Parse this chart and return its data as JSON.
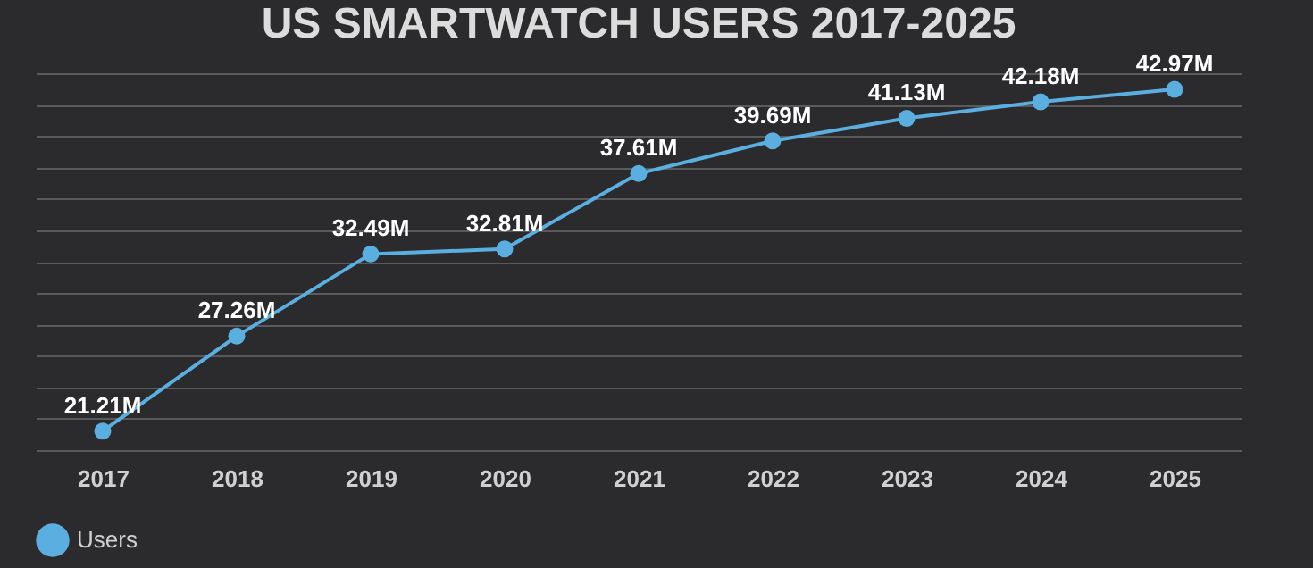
{
  "chart_data": {
    "type": "line",
    "title": "US SMARTWATCH USERS 2017-2025",
    "categories": [
      "2017",
      "2018",
      "2019",
      "2020",
      "2021",
      "2022",
      "2023",
      "2024",
      "2025"
    ],
    "series": [
      {
        "name": "Users",
        "color": "#5aafe0",
        "values": [
          21.21,
          27.26,
          32.49,
          32.81,
          37.61,
          39.69,
          41.13,
          42.18,
          42.97
        ],
        "value_labels": [
          "21.21M",
          "27.26M",
          "32.49M",
          "32.81M",
          "37.61M",
          "39.69M",
          "41.13M",
          "42.18M",
          "42.97M"
        ]
      }
    ],
    "ylim": [
      20,
      44
    ],
    "grid": "y",
    "tick_labels": "x",
    "legend": "bottom",
    "marker": "circle",
    "line_style": "solid"
  }
}
